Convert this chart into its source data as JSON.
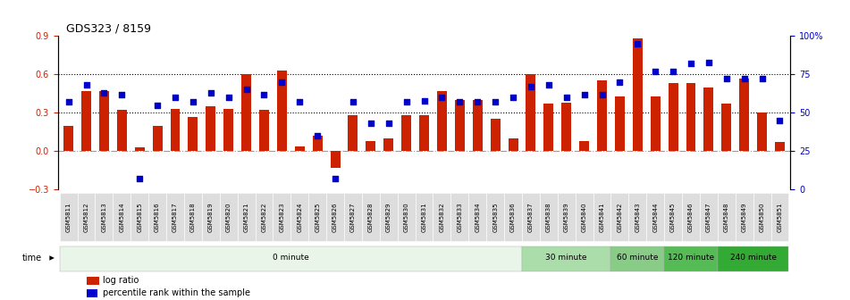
{
  "title": "GDS323 / 8159",
  "samples": [
    "GSM5811",
    "GSM5812",
    "GSM5813",
    "GSM5814",
    "GSM5815",
    "GSM5816",
    "GSM5817",
    "GSM5818",
    "GSM5819",
    "GSM5820",
    "GSM5821",
    "GSM5822",
    "GSM5823",
    "GSM5824",
    "GSM5825",
    "GSM5826",
    "GSM5827",
    "GSM5828",
    "GSM5829",
    "GSM5830",
    "GSM5831",
    "GSM5832",
    "GSM5833",
    "GSM5834",
    "GSM5835",
    "GSM5836",
    "GSM5837",
    "GSM5838",
    "GSM5839",
    "GSM5840",
    "GSM5841",
    "GSM5842",
    "GSM5843",
    "GSM5844",
    "GSM5845",
    "GSM5846",
    "GSM5847",
    "GSM5848",
    "GSM5849",
    "GSM5850",
    "GSM5851"
  ],
  "log_ratio": [
    0.2,
    0.47,
    0.47,
    0.32,
    0.03,
    0.2,
    0.33,
    0.27,
    0.35,
    0.33,
    0.6,
    0.32,
    0.63,
    0.04,
    0.12,
    -0.13,
    0.28,
    0.08,
    0.1,
    0.28,
    0.28,
    0.47,
    0.4,
    0.4,
    0.25,
    0.1,
    0.6,
    0.37,
    0.38,
    0.08,
    0.55,
    0.43,
    0.88,
    0.43,
    0.53,
    0.53,
    0.5,
    0.37,
    0.57,
    0.3,
    0.07
  ],
  "percentile": [
    0.57,
    0.68,
    0.63,
    0.62,
    0.07,
    0.55,
    0.6,
    0.57,
    0.63,
    0.6,
    0.65,
    0.62,
    0.7,
    0.57,
    0.35,
    0.07,
    0.57,
    0.43,
    0.43,
    0.57,
    0.58,
    0.6,
    0.57,
    0.57,
    0.57,
    0.6,
    0.67,
    0.68,
    0.6,
    0.62,
    0.62,
    0.7,
    0.95,
    0.77,
    0.77,
    0.82,
    0.83,
    0.72,
    0.72,
    0.72,
    0.45
  ],
  "ylim_left": [
    -0.3,
    0.9
  ],
  "ylim_right": [
    0.0,
    1.0
  ],
  "yticks_left": [
    -0.3,
    0.0,
    0.3,
    0.6,
    0.9
  ],
  "yticks_right": [
    0.0,
    0.25,
    0.5,
    0.75,
    1.0
  ],
  "ytick_labels_right": [
    "0",
    "25",
    "50",
    "75",
    "100%"
  ],
  "hlines": [
    0.3,
    0.6
  ],
  "bar_color": "#CC2200",
  "dot_color": "#0000CC",
  "zero_line_color": "#CC8888",
  "time_groups": [
    {
      "label": "0 minute",
      "start": 0,
      "end": 26,
      "color": "#E8F5E8"
    },
    {
      "label": "30 minute",
      "start": 26,
      "end": 31,
      "color": "#AADDAA"
    },
    {
      "label": "60 minute",
      "start": 31,
      "end": 34,
      "color": "#88CC88"
    },
    {
      "label": "120 minute",
      "start": 34,
      "end": 37,
      "color": "#55BB55"
    },
    {
      "label": "240 minute",
      "start": 37,
      "end": 41,
      "color": "#33AA33"
    }
  ],
  "legend_labels": [
    "log ratio",
    "percentile rank within the sample"
  ],
  "xlabel_time": "time",
  "label_box_color": "#DDDDDD",
  "background_color": "#FFFFFF",
  "fig_width": 9.51,
  "fig_height": 3.36,
  "dpi": 100
}
